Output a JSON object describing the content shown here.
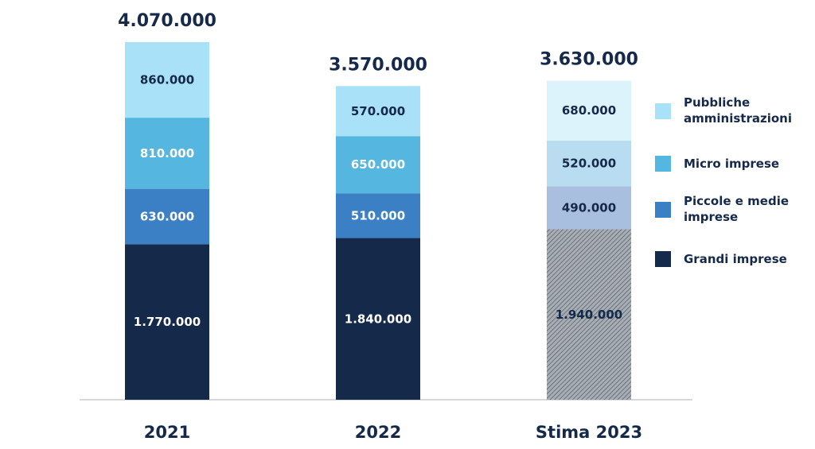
{
  "chart_data": {
    "type": "bar",
    "stacked": true,
    "categories": [
      "2021",
      "2022",
      "Stima 2023"
    ],
    "totals": [
      "4.070.000",
      "3.570.000",
      "3.630.000"
    ],
    "series": [
      {
        "name": "Grandi imprese",
        "values": [
          1770000,
          1840000,
          1940000
        ],
        "labels": [
          "1.770.000",
          "1.840.000",
          "1.940.000"
        ],
        "color": "#15294a"
      },
      {
        "name": "Piccole e medie imprese",
        "values": [
          630000,
          510000,
          490000
        ],
        "labels": [
          "630.000",
          "510.000",
          "490.000"
        ],
        "color": "#3b7fc4"
      },
      {
        "name": "Micro imprese",
        "values": [
          810000,
          650000,
          520000
        ],
        "labels": [
          "810.000",
          "650.000",
          "520.000"
        ],
        "color": "#55b6e0"
      },
      {
        "name": "Pubbliche amministrazioni",
        "values": [
          860000,
          570000,
          680000
        ],
        "labels": [
          "860.000",
          "570.000",
          "680.000"
        ],
        "color": "#a9e1f8"
      }
    ],
    "estimate_colors": [
      "#a8adb3",
      "#a9bfe0",
      "#b8ddf0",
      "#ddf3fc"
    ],
    "legend_position": "right",
    "grid": false
  }
}
